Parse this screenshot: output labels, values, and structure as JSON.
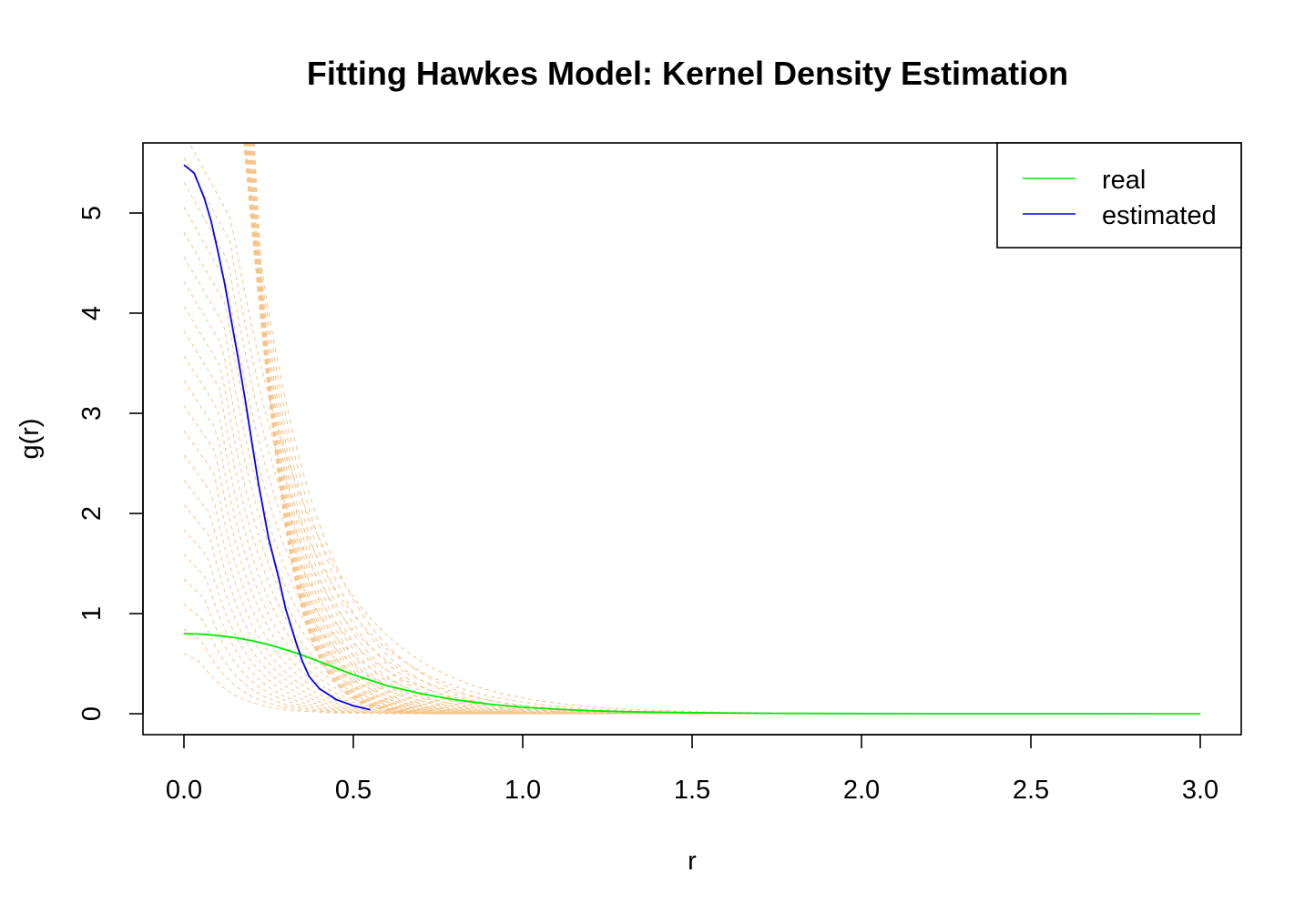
{
  "chart_data": {
    "type": "line",
    "title": "Fitting Hawkes Model: Kernel Density Estimation",
    "xlabel": "r",
    "ylabel": "g(r)",
    "xlim": [
      -0.12,
      3.12
    ],
    "ylim": [
      -0.2,
      5.7
    ],
    "x_ticks": [
      0,
      0.5,
      1,
      1.5,
      2,
      2.5,
      3
    ],
    "x_tick_labels": [
      "0.0",
      "0.5",
      "1.0",
      "1.5",
      "2.0",
      "2.5",
      "3.0"
    ],
    "y_ticks": [
      0,
      1,
      2,
      3,
      4,
      5
    ],
    "y_tick_labels": [
      "0",
      "1",
      "2",
      "3",
      "4",
      "5"
    ],
    "legend": {
      "position": "top-right",
      "entries": [
        {
          "label": "real",
          "color": "#00ee00"
        },
        {
          "label": "estimated",
          "color": "#0000ff"
        }
      ]
    },
    "series": [
      {
        "name": "real",
        "color": "#00ee00",
        "style": "solid-then-dashdot",
        "x": [
          0,
          0.05,
          0.1,
          0.15,
          0.2,
          0.25,
          0.3,
          0.35,
          0.4,
          0.45,
          0.5,
          0.6,
          0.7,
          0.8,
          0.9,
          1.0,
          1.1,
          1.2,
          1.3,
          1.5,
          1.75,
          2.0,
          2.5,
          3.0
        ],
        "y": [
          0.8,
          0.795,
          0.78,
          0.76,
          0.73,
          0.69,
          0.64,
          0.585,
          0.52,
          0.455,
          0.39,
          0.28,
          0.2,
          0.14,
          0.095,
          0.065,
          0.045,
          0.03,
          0.02,
          0.01,
          0.004,
          0.002,
          0.0005,
          0.0001
        ]
      },
      {
        "name": "estimated",
        "color": "#0000ff",
        "style": "solid-then-dashdot",
        "x": [
          0,
          0.03,
          0.06,
          0.08,
          0.1,
          0.12,
          0.14,
          0.16,
          0.18,
          0.2,
          0.22,
          0.25,
          0.28,
          0.3,
          0.33,
          0.35,
          0.37,
          0.4,
          0.45,
          0.5,
          0.55
        ],
        "y": [
          5.48,
          5.4,
          5.15,
          4.92,
          4.62,
          4.3,
          3.92,
          3.55,
          3.15,
          2.72,
          2.3,
          1.75,
          1.35,
          1.05,
          0.72,
          0.52,
          0.37,
          0.25,
          0.14,
          0.08,
          0.04
        ]
      }
    ],
    "background_curves": {
      "color": "#f5c48a",
      "count": 22,
      "description_values": "iterative kernel estimates shown as thin dashed curves"
    }
  }
}
